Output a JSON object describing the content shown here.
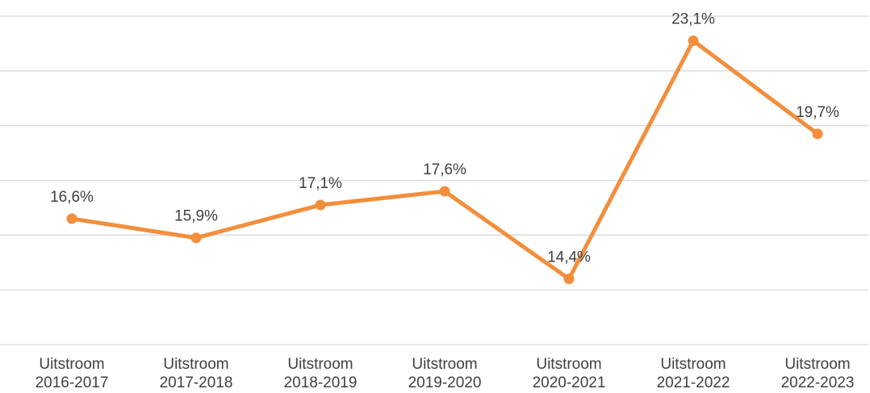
{
  "chart_data": {
    "type": "line",
    "categories": [
      "Uitstroom 2016-2017",
      "Uitstroom 2017-2018",
      "Uitstroom 2018-2019",
      "Uitstroom 2019-2020",
      "Uitstroom 2020-2021",
      "Uitstroom 2021-2022",
      "Uitstroom 2022-2023"
    ],
    "series": [
      {
        "color": "#f28e3c",
        "values": [
          16.6,
          15.9,
          17.1,
          17.6,
          14.4,
          23.1,
          19.7
        ],
        "value_labels": [
          "16,6%",
          "15,9%",
          "17,1%",
          "17,6%",
          "14,4%",
          "23,1%",
          "19,7%"
        ]
      }
    ],
    "ylim": [
      12,
      24
    ],
    "yticks": [
      12,
      14,
      16,
      18,
      20,
      22,
      24
    ],
    "grid": true
  }
}
